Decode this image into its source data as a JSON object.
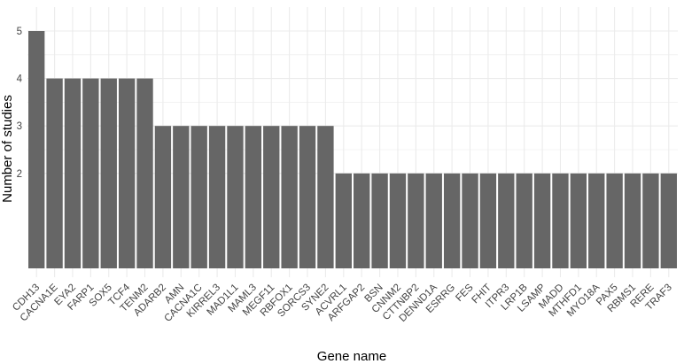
{
  "chart_data": {
    "type": "bar",
    "xlabel": "Gene name",
    "ylabel": "Number of studies",
    "categories": [
      "CDH13",
      "CACNA1E",
      "EYA2",
      "FARP1",
      "SOX5",
      "TCF4",
      "TENM2",
      "ADARB2",
      "AMN",
      "CACNA1C",
      "KIRREL3",
      "MAD1L1",
      "MAML3",
      "MEGF11",
      "RBFOX1",
      "SORCS3",
      "SYNE2",
      "ACVRL1",
      "ARFGAP2",
      "BSN",
      "CNNM2",
      "CTTNBP2",
      "DENND1A",
      "ESRRG",
      "FES",
      "FHIT",
      "ITPR3",
      "LRP1B",
      "LSAMP",
      "MADD",
      "MTHFD1",
      "MYO18A",
      "PAX5",
      "RBMS1",
      "RERE",
      "TRAF3"
    ],
    "values": [
      5,
      4,
      4,
      4,
      4,
      4,
      4,
      3,
      3,
      3,
      3,
      3,
      3,
      3,
      3,
      3,
      3,
      2,
      2,
      2,
      2,
      2,
      2,
      2,
      2,
      2,
      2,
      2,
      2,
      2,
      2,
      2,
      2,
      2,
      2,
      2
    ],
    "y_ticks": [
      2,
      3,
      4,
      5
    ],
    "ylim": [
      0,
      5.2
    ],
    "grid": true,
    "colors": {
      "bar": "#666666",
      "grid": "#ebebeb",
      "background": "#ffffff"
    }
  }
}
